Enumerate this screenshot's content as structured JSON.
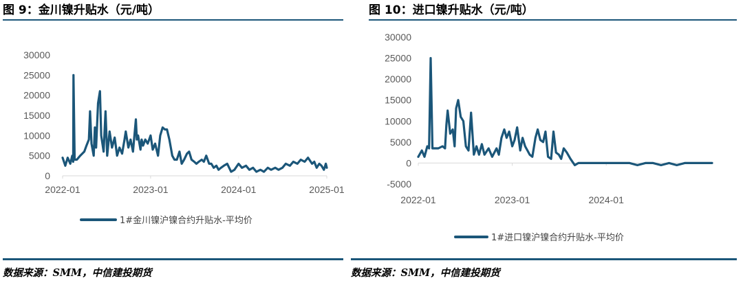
{
  "figures": [
    {
      "title": "图 9：金川镍升贴水（元/吨）",
      "source": "数据来源：SMM，中信建投期货"
    },
    {
      "title": "图 10：进口镍升贴水（元/吨）",
      "source": "数据来源：SMM，中信建投期货"
    }
  ],
  "colors": {
    "series": "#1b5679",
    "rule": "#1b5679",
    "axis": "#d9d9d9",
    "tick": "#595959"
  },
  "chart_data": [
    {
      "type": "line",
      "title": "",
      "xlabel": "",
      "ylabel": "",
      "x_ticks": [
        "2022-01",
        "2023-01",
        "2024-01",
        "2025-01"
      ],
      "y_ticks": [
        0,
        5000,
        10000,
        15000,
        20000,
        25000,
        30000
      ],
      "ylim": [
        0,
        30000
      ],
      "xlim": [
        "2022-01-01",
        "2025-01-01"
      ],
      "grid": false,
      "legend_position": "bottom",
      "series": [
        {
          "name": "1#金川镍沪镍合约升贴水-平均价",
          "x": [
            "2022-01-01",
            "2022-01-12",
            "2022-01-22",
            "2022-02-02",
            "2022-02-10",
            "2022-02-14",
            "2022-02-15",
            "2022-02-20",
            "2022-03-01",
            "2022-03-15",
            "2022-04-01",
            "2022-04-10",
            "2022-04-20",
            "2022-04-25",
            "2022-05-01",
            "2022-05-10",
            "2022-05-15",
            "2022-05-20",
            "2022-05-28",
            "2022-06-05",
            "2022-06-10",
            "2022-06-20",
            "2022-06-28",
            "2022-07-05",
            "2022-07-15",
            "2022-07-25",
            "2022-08-05",
            "2022-08-15",
            "2022-08-25",
            "2022-09-05",
            "2022-09-15",
            "2022-09-20",
            "2022-10-01",
            "2022-10-10",
            "2022-10-20",
            "2022-11-01",
            "2022-11-05",
            "2022-11-10",
            "2022-11-20",
            "2022-11-25",
            "2022-12-01",
            "2022-12-10",
            "2022-12-20",
            "2023-01-01",
            "2023-01-10",
            "2023-01-20",
            "2023-02-01",
            "2023-02-10",
            "2023-02-20",
            "2023-03-01",
            "2023-03-10",
            "2023-03-20",
            "2023-04-01",
            "2023-04-10",
            "2023-04-20",
            "2023-05-01",
            "2023-05-10",
            "2023-05-20",
            "2023-06-01",
            "2023-06-10",
            "2023-06-20",
            "2023-07-01",
            "2023-07-10",
            "2023-07-20",
            "2023-08-01",
            "2023-08-10",
            "2023-08-20",
            "2023-09-01",
            "2023-09-10",
            "2023-09-20",
            "2023-10-01",
            "2023-10-10",
            "2023-10-20",
            "2023-11-01",
            "2023-11-15",
            "2023-12-01",
            "2023-12-15",
            "2024-01-01",
            "2024-01-15",
            "2024-02-01",
            "2024-02-15",
            "2024-03-01",
            "2024-03-15",
            "2024-04-01",
            "2024-04-15",
            "2024-05-01",
            "2024-05-15",
            "2024-06-01",
            "2024-06-15",
            "2024-07-01",
            "2024-07-15",
            "2024-08-01",
            "2024-08-15",
            "2024-09-01",
            "2024-09-15",
            "2024-10-01",
            "2024-10-15",
            "2024-11-01",
            "2024-11-10",
            "2024-11-20",
            "2024-12-01",
            "2024-12-10",
            "2024-12-20",
            "2024-12-28",
            "2025-01-01"
          ],
          "values": [
            4500,
            2500,
            4500,
            3000,
            5000,
            3500,
            25000,
            4000,
            4000,
            5000,
            6000,
            7500,
            9000,
            16000,
            8000,
            5000,
            12000,
            7000,
            18000,
            21000,
            10000,
            6000,
            16000,
            5000,
            11000,
            7000,
            9500,
            5000,
            7000,
            5500,
            9000,
            11000,
            7000,
            9000,
            6000,
            14000,
            9000,
            10000,
            6500,
            9000,
            7500,
            9000,
            8000,
            10000,
            6500,
            8000,
            5000,
            10000,
            12000,
            11500,
            11500,
            9000,
            5000,
            4000,
            4000,
            6000,
            3000,
            4000,
            5500,
            6000,
            4000,
            3500,
            3000,
            3500,
            4000,
            3500,
            5000,
            3000,
            3000,
            2000,
            2500,
            1500,
            2000,
            2500,
            3000,
            1000,
            1500,
            3000,
            2000,
            2500,
            1500,
            2000,
            1000,
            1500,
            1000,
            2000,
            1500,
            2000,
            1500,
            2000,
            3000,
            2500,
            3500,
            3000,
            4000,
            3500,
            4500,
            3000,
            3500,
            2000,
            3000,
            2500,
            1500,
            3000,
            2000
          ]
        }
      ]
    },
    {
      "type": "line",
      "title": "",
      "xlabel": "",
      "ylabel": "",
      "x_ticks": [
        "2022-01",
        "2023-01",
        "2024-01"
      ],
      "y_ticks": [
        -5000,
        0,
        5000,
        10000,
        15000,
        20000,
        25000,
        30000
      ],
      "ylim": [
        -5000,
        30000
      ],
      "xlim": [
        "2022-01-01",
        "2025-02-15"
      ],
      "grid": false,
      "legend_position": "bottom",
      "series": [
        {
          "name": "1#进口镍沪镍合约升贴水-平均价",
          "x": [
            "2022-01-01",
            "2022-01-15",
            "2022-01-25",
            "2022-02-05",
            "2022-02-12",
            "2022-02-18",
            "2022-02-25",
            "2022-03-02",
            "2022-03-20",
            "2022-04-05",
            "2022-04-15",
            "2022-04-20",
            "2022-04-25",
            "2022-05-05",
            "2022-05-15",
            "2022-05-22",
            "2022-05-28",
            "2022-06-05",
            "2022-06-15",
            "2022-06-25",
            "2022-07-05",
            "2022-07-15",
            "2022-07-25",
            "2022-08-05",
            "2022-08-15",
            "2022-08-25",
            "2022-09-05",
            "2022-09-15",
            "2022-10-01",
            "2022-10-15",
            "2022-11-01",
            "2022-11-10",
            "2022-11-20",
            "2022-12-01",
            "2022-12-10",
            "2022-12-20",
            "2023-01-01",
            "2023-01-10",
            "2023-01-20",
            "2023-02-01",
            "2023-02-10",
            "2023-02-20",
            "2023-03-01",
            "2023-03-10",
            "2023-03-20",
            "2023-04-01",
            "2023-04-10",
            "2023-04-20",
            "2023-05-01",
            "2023-05-10",
            "2023-05-20",
            "2023-06-01",
            "2023-06-10",
            "2023-06-20",
            "2023-07-01",
            "2023-07-10",
            "2023-07-20",
            "2023-08-01",
            "2023-08-15",
            "2023-09-01",
            "2023-09-15",
            "2023-10-01",
            "2023-10-15",
            "2023-11-01",
            "2023-12-01",
            "2024-01-01",
            "2024-02-01",
            "2024-03-01",
            "2024-04-01",
            "2024-05-01",
            "2024-06-01",
            "2024-07-01",
            "2024-08-01",
            "2024-09-01",
            "2024-10-01",
            "2024-11-01",
            "2024-12-01",
            "2025-01-01",
            "2025-02-01",
            "2025-02-15"
          ],
          "values": [
            1500,
            3000,
            1500,
            4000,
            3500,
            25000,
            3500,
            3500,
            3500,
            4000,
            3500,
            9000,
            12500,
            7000,
            8000,
            4000,
            13000,
            15000,
            11000,
            10000,
            4000,
            3000,
            12000,
            2000,
            4000,
            2000,
            4500,
            2000,
            3500,
            1500,
            3500,
            2000,
            6000,
            8000,
            6000,
            7500,
            4000,
            5500,
            8500,
            3000,
            6000,
            4000,
            3000,
            2000,
            1500,
            6000,
            8000,
            5500,
            5000,
            7500,
            1500,
            1000,
            7500,
            2500,
            2000,
            1000,
            3500,
            2500,
            1000,
            -500,
            0,
            0,
            0,
            0,
            0,
            0,
            0,
            0,
            0,
            -500,
            0,
            0,
            -500,
            0,
            -500,
            0,
            0,
            0,
            0,
            0
          ]
        }
      ]
    }
  ]
}
